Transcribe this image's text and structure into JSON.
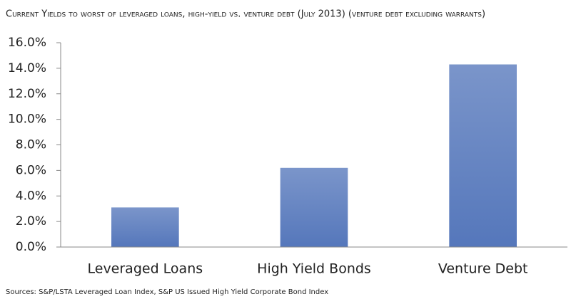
{
  "chart_data": {
    "type": "bar",
    "title": "Current Yields to worst of leveraged loans, high-yield vs. venture debt (July 2013) (venture debt excluding warrants)",
    "categories": [
      "Leveraged Loans",
      "High Yield Bonds",
      "Venture Debt"
    ],
    "values": [
      3.1,
      6.2,
      14.3
    ],
    "color": "#5577bb",
    "ylim": [
      0,
      16
    ],
    "yticks": [
      {
        "value": 0,
        "label": "0.0%"
      },
      {
        "value": 2,
        "label": "2.0%"
      },
      {
        "value": 4,
        "label": "4.0%"
      },
      {
        "value": 6,
        "label": "6.0%"
      },
      {
        "value": 8,
        "label": "8.0%"
      },
      {
        "value": 10,
        "label": "10.0%"
      },
      {
        "value": 12,
        "label": "12.0%"
      },
      {
        "value": 14,
        "label": "14.0%"
      },
      {
        "value": 16,
        "label": "16.0%"
      }
    ],
    "grid": false,
    "source": "Sources: S&P/LSTA Leveraged Loan Index, S&P US Issued High Yield Corporate Bond Index"
  }
}
